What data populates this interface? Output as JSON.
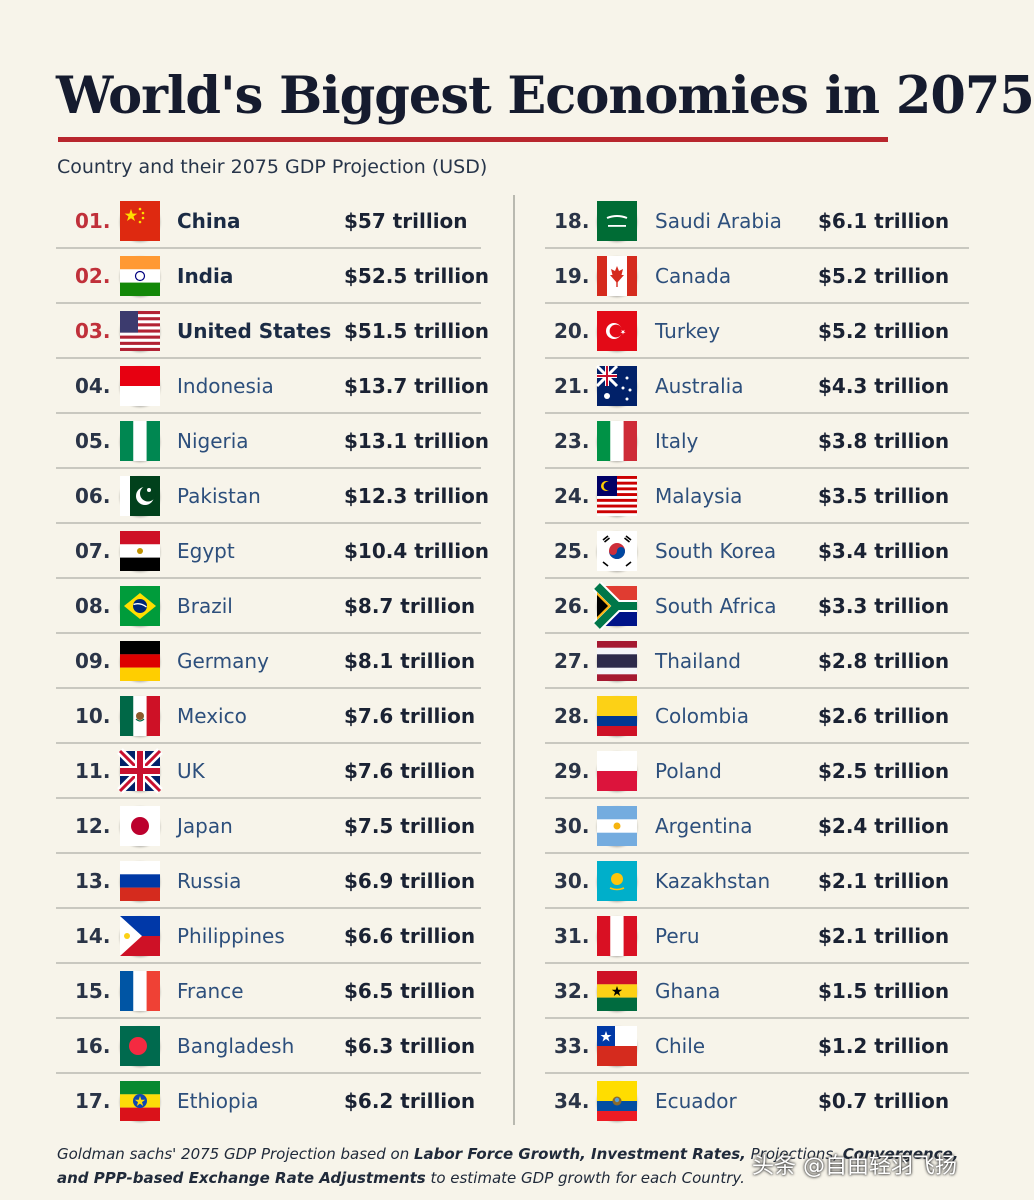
{
  "title": "World's Biggest Economies in 2075",
  "subtitle": "Country and their 2075 GDP Projection (USD)",
  "colors": {
    "accent": "#b8262d",
    "highlight_text": "#c0303a",
    "name_text": "#2d4f7c"
  },
  "left_column": [
    {
      "rank": "01.",
      "name": "China",
      "value": "$57 trillion",
      "flag": "china-flag-icon"
    },
    {
      "rank": "02.",
      "name": "India",
      "value": "$52.5 trillion",
      "flag": "india-flag-icon"
    },
    {
      "rank": "03.",
      "name": "United States",
      "value": "$51.5 trillion",
      "flag": "usa-flag-icon"
    },
    {
      "rank": "04.",
      "name": "Indonesia",
      "value": "$13.7 trillion",
      "flag": "indonesia-flag-icon"
    },
    {
      "rank": "05.",
      "name": "Nigeria",
      "value": "$13.1 trillion",
      "flag": "nigeria-flag-icon"
    },
    {
      "rank": "06.",
      "name": "Pakistan",
      "value": "$12.3 trillion",
      "flag": "pakistan-flag-icon"
    },
    {
      "rank": "07.",
      "name": "Egypt",
      "value": "$10.4 trillion",
      "flag": "egypt-flag-icon"
    },
    {
      "rank": "08.",
      "name": "Brazil",
      "value": "$8.7 trillion",
      "flag": "brazil-flag-icon"
    },
    {
      "rank": "09.",
      "name": "Germany",
      "value": "$8.1 trillion",
      "flag": "germany-flag-icon"
    },
    {
      "rank": "10.",
      "name": "Mexico",
      "value": "$7.6 trillion",
      "flag": "mexico-flag-icon"
    },
    {
      "rank": "11.",
      "name": "UK",
      "value": "$7.6 trillion",
      "flag": "uk-flag-icon"
    },
    {
      "rank": "12.",
      "name": "Japan",
      "value": "$7.5 trillion",
      "flag": "japan-flag-icon"
    },
    {
      "rank": "13.",
      "name": "Russia",
      "value": "$6.9 trillion",
      "flag": "russia-flag-icon"
    },
    {
      "rank": "14.",
      "name": "Philippines",
      "value": "$6.6 trillion",
      "flag": "philippines-flag-icon"
    },
    {
      "rank": "15.",
      "name": "France",
      "value": "$6.5 trillion",
      "flag": "france-flag-icon"
    },
    {
      "rank": "16.",
      "name": "Bangladesh",
      "value": "$6.3 trillion",
      "flag": "bangladesh-flag-icon"
    },
    {
      "rank": "17.",
      "name": "Ethiopia",
      "value": "$6.2 trillion",
      "flag": "ethiopia-flag-icon"
    }
  ],
  "right_column": [
    {
      "rank": "18.",
      "name": "Saudi Arabia",
      "value": "$6.1 trillion",
      "flag": "saudi-arabia-flag-icon"
    },
    {
      "rank": "19.",
      "name": "Canada",
      "value": "$5.2 trillion",
      "flag": "canada-flag-icon"
    },
    {
      "rank": "20.",
      "name": "Turkey",
      "value": "$5.2 trillion",
      "flag": "turkey-flag-icon"
    },
    {
      "rank": "21.",
      "name": "Australia",
      "value": "$4.3 trillion",
      "flag": "australia-flag-icon"
    },
    {
      "rank": "23.",
      "name": "Italy",
      "value": "$3.8 trillion",
      "flag": "italy-flag-icon"
    },
    {
      "rank": "24.",
      "name": "Malaysia",
      "value": "$3.5 trillion",
      "flag": "malaysia-flag-icon"
    },
    {
      "rank": "25.",
      "name": "South Korea",
      "value": "$3.4 trillion",
      "flag": "south-korea-flag-icon"
    },
    {
      "rank": "26.",
      "name": "South Africa",
      "value": "$3.3 trillion",
      "flag": "south-africa-flag-icon"
    },
    {
      "rank": "27.",
      "name": "Thailand",
      "value": "$2.8 trillion",
      "flag": "thailand-flag-icon"
    },
    {
      "rank": "28.",
      "name": "Colombia",
      "value": "$2.6 trillion",
      "flag": "colombia-flag-icon"
    },
    {
      "rank": "29.",
      "name": "Poland",
      "value": "$2.5 trillion",
      "flag": "poland-flag-icon"
    },
    {
      "rank": "30.",
      "name": "Argentina",
      "value": "$2.4 trillion",
      "flag": "argentina-flag-icon"
    },
    {
      "rank": "30.",
      "name": "Kazakhstan",
      "value": "$2.1 trillion",
      "flag": "kazakhstan-flag-icon"
    },
    {
      "rank": "31.",
      "name": "Peru",
      "value": "$2.1 trillion",
      "flag": "peru-flag-icon"
    },
    {
      "rank": "32.",
      "name": "Ghana",
      "value": "$1.5 trillion",
      "flag": "ghana-flag-icon"
    },
    {
      "rank": "33.",
      "name": "Chile",
      "value": "$1.2 trillion",
      "flag": "chile-flag-icon"
    },
    {
      "rank": "34.",
      "name": "Ecuador",
      "value": "$0.7 trillion",
      "flag": "ecuador-flag-icon"
    }
  ],
  "footnote": {
    "part1": "Goldman sachs' 2075 GDP Projection based on ",
    "bold1": "Labor Force Growth, Investment Rates,",
    "part2": " Projections, ",
    "bold2": "Convergence, and PPP-based Exchange Rate Adjustments",
    "part3": " to estimate GDP growth for each Country."
  },
  "watermark": "头条 @自由轻羽飞扬"
}
